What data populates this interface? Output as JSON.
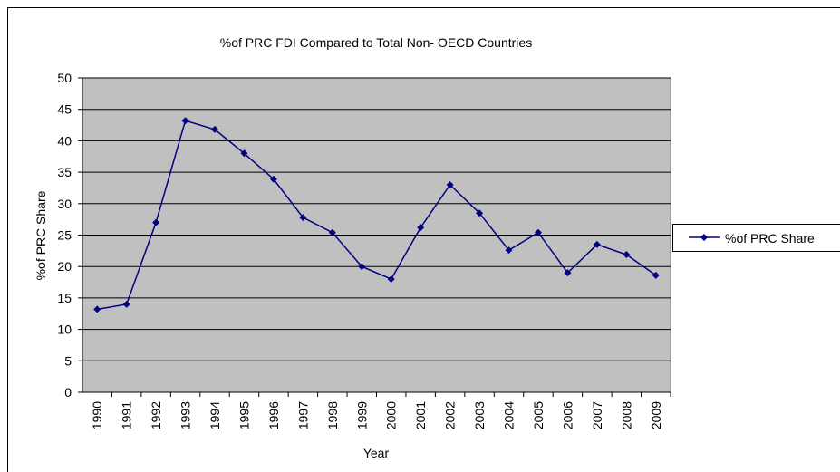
{
  "chart_data": {
    "type": "line",
    "title": "%of PRC FDI Compared to Total Non- OECD Countries",
    "x_label": "Year",
    "y_label": "%of PRC Share",
    "categories": [
      "1990",
      "1991",
      "1992",
      "1993",
      "1994",
      "1995",
      "1996",
      "1997",
      "1998",
      "1999",
      "2000",
      "2001",
      "2002",
      "2003",
      "2004",
      "2005",
      "2006",
      "2007",
      "2008",
      "2009"
    ],
    "series": [
      {
        "name": "%of PRC Share",
        "color": "#000080",
        "values": [
          13.2,
          14,
          27,
          43.2,
          41.8,
          38,
          33.9,
          27.8,
          25.4,
          20,
          18,
          26.2,
          33,
          28.5,
          22.6,
          25.4,
          19,
          23.5,
          21.9,
          18.6
        ]
      }
    ],
    "ylim": [
      0,
      50
    ],
    "yticks": [
      0,
      5,
      10,
      15,
      20,
      25,
      30,
      35,
      40,
      45,
      50
    ],
    "grid": true,
    "plot_background": "#c0c0c0",
    "legend": "right"
  }
}
